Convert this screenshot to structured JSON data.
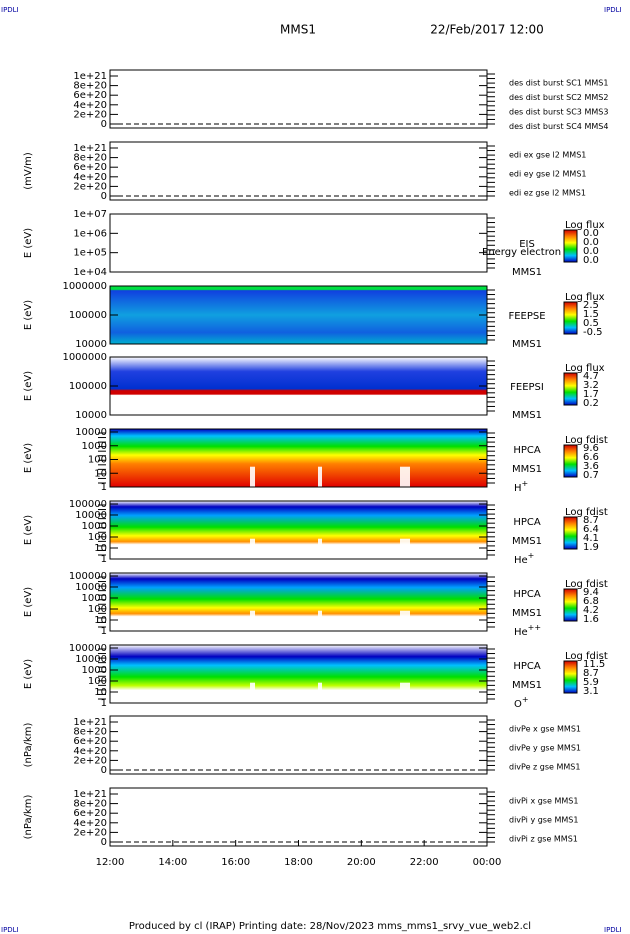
{
  "header": {
    "corner_left": "IPDLI",
    "corner_right": "IPDLI",
    "spacecraft": "MMS1",
    "date": "22/Feb/2017 12:00"
  },
  "panels": [
    {
      "yticks": [
        "1e+21",
        "8e+20",
        "6e+20",
        "4e+20",
        "2e+20",
        "0"
      ],
      "legend": [
        {
          "text": "des dist burst SC1 MMS1",
          "color": "#0000c8"
        },
        {
          "text": "des dist burst SC2 MMS2",
          "color": "#e000e0"
        },
        {
          "text": "des dist burst SC3 MMS3",
          "color": "#e00000"
        },
        {
          "text": "des dist burst SC4 MMS4",
          "color": "#00d000"
        }
      ]
    },
    {
      "y_label": "(mV/m)",
      "yticks": [
        "1e+21",
        "8e+20",
        "6e+20",
        "4e+20",
        "2e+20",
        "0"
      ],
      "legend": [
        {
          "text": "edi ex gse l2 MMS1",
          "color": "#e00000"
        },
        {
          "text": "edi ey gse l2 MMS1",
          "color": "#00d000"
        },
        {
          "text": "edi ez gse l2 MMS1",
          "color": "#0000c8"
        }
      ]
    },
    {
      "y_label": "E (eV)",
      "yticks": [
        "1e+07",
        "1e+06",
        "1e+05",
        "1e+04"
      ],
      "side_labels": [
        "EIS",
        "MMS1"
      ],
      "overlap_text": "Energy electron to",
      "colorbar": {
        "title": "Log flux",
        "labels": [
          "0.0",
          "0.0",
          "0.0",
          "0.0"
        ]
      }
    },
    {
      "y_label": "E (eV)",
      "yticks": [
        "1000000",
        "100000",
        "10000"
      ],
      "side_labels": [
        "FEEPSE",
        "MMS1"
      ],
      "colorbar": {
        "title": "Log flux",
        "labels": [
          "2.5",
          "1.5",
          "0.5",
          "-0.5"
        ]
      }
    },
    {
      "y_label": "E (eV)",
      "yticks": [
        "1000000",
        "100000",
        "10000"
      ],
      "side_labels": [
        "FEEPSI",
        "MMS1"
      ],
      "colorbar": {
        "title": "Log flux",
        "labels": [
          "4.7",
          "3.2",
          "1.7",
          "0.2"
        ]
      }
    },
    {
      "y_label": "E (eV)",
      "yticks": [
        "10000",
        "1000",
        "100",
        "10",
        "1"
      ],
      "side_labels": [
        "HPCA",
        "MMS1"
      ],
      "species": {
        "base": "H",
        "charge": "+"
      },
      "colorbar": {
        "title": "Log fdist",
        "labels": [
          "9.6",
          "6.6",
          "3.6",
          "0.7"
        ]
      }
    },
    {
      "y_label": "E (eV)",
      "yticks": [
        "100000",
        "10000",
        "1000",
        "100",
        "10",
        "1"
      ],
      "side_labels": [
        "HPCA",
        "MMS1"
      ],
      "species": {
        "base": "He",
        "charge": "+"
      },
      "colorbar": {
        "title": "Log fdist",
        "labels": [
          "8.7",
          "6.4",
          "4.1",
          "1.9"
        ]
      }
    },
    {
      "y_label": "E (eV)",
      "yticks": [
        "100000",
        "10000",
        "1000",
        "100",
        "10",
        "1"
      ],
      "side_labels": [
        "HPCA",
        "MMS1"
      ],
      "species": {
        "base": "He",
        "charge": "++"
      },
      "colorbar": {
        "title": "Log fdist",
        "labels": [
          "9.4",
          "6.8",
          "4.2",
          "1.6"
        ]
      }
    },
    {
      "y_label": "E (eV)",
      "yticks": [
        "100000",
        "10000",
        "1000",
        "100",
        "10",
        "1"
      ],
      "side_labels": [
        "HPCA",
        "MMS1"
      ],
      "species": {
        "base": "O",
        "charge": "+"
      },
      "colorbar": {
        "title": "Log fdist",
        "labels": [
          "11.5",
          "8.7",
          "5.9",
          "3.1"
        ]
      }
    },
    {
      "y_label": "(nPa/km)",
      "yticks": [
        "1e+21",
        "8e+20",
        "6e+20",
        "4e+20",
        "2e+20",
        "0"
      ],
      "legend": [
        {
          "text": "divPe x gse MMS1",
          "color": "#e00000"
        },
        {
          "text": "divPe y gse MMS1",
          "color": "#00d000"
        },
        {
          "text": "divPe z gse MMS1",
          "color": "#0000c8"
        }
      ]
    },
    {
      "y_label": "(nPa/km)",
      "yticks": [
        "1e+21",
        "8e+20",
        "6e+20",
        "4e+20",
        "2e+20",
        "0"
      ],
      "legend": [
        {
          "text": "divPi x gse MMS1",
          "color": "#e00000"
        },
        {
          "text": "divPi y gse MMS1",
          "color": "#00d000"
        },
        {
          "text": "divPi z gse MMS1",
          "color": "#0000c8"
        }
      ]
    }
  ],
  "x_axis": {
    "ticks": [
      "12:00",
      "14:00",
      "16:00",
      "18:00",
      "20:00",
      "22:00",
      "00:00"
    ]
  },
  "footer": {
    "text": "Produced by cl (IRAP)   Printing date: 28/Nov/2023   mms_mms1_srvy_vue_web2.cl",
    "corner_left": "IPDLI",
    "corner_right": "IPDLI"
  }
}
